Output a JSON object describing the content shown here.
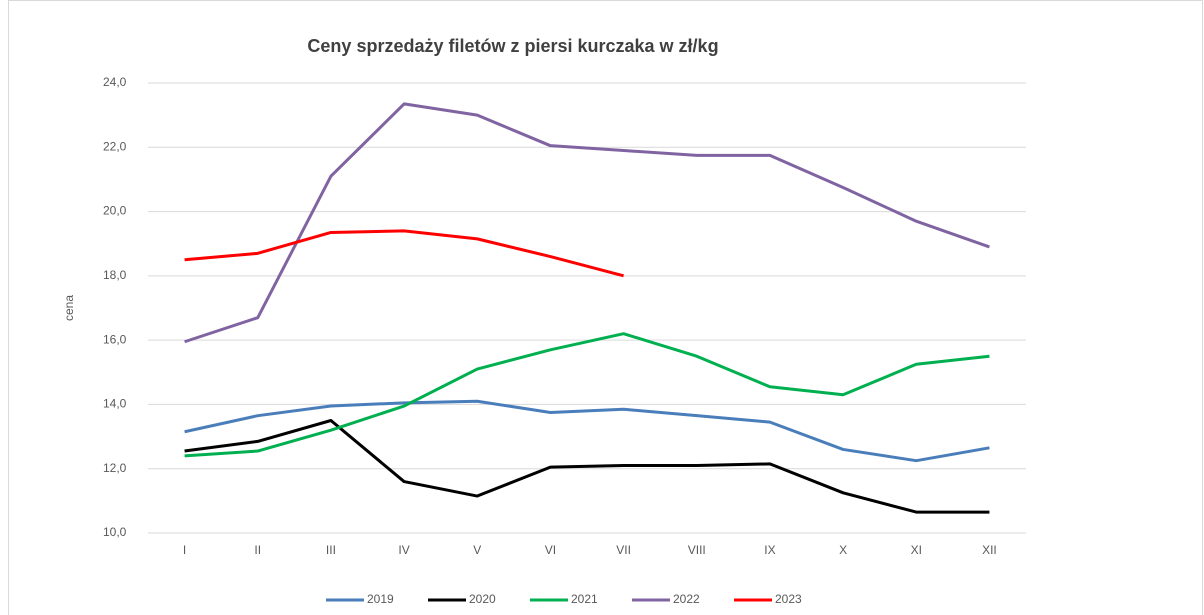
{
  "chart_data": {
    "type": "line",
    "title": "Ceny sprzedaży filetów z piersi kurczaka w zł/kg",
    "ylabel": "cena",
    "categories": [
      "I",
      "II",
      "III",
      "IV",
      "V",
      "VI",
      "VII",
      "VIII",
      "IX",
      "X",
      "XI",
      "XII"
    ],
    "series": [
      {
        "name": "2019",
        "color": "#4a7ebb",
        "values": [
          13.15,
          13.65,
          13.95,
          14.05,
          14.1,
          13.75,
          13.85,
          13.65,
          13.45,
          12.6,
          12.25,
          12.65
        ]
      },
      {
        "name": "2020",
        "color": "#000000",
        "values": [
          12.55,
          12.85,
          13.5,
          11.6,
          11.15,
          12.05,
          12.1,
          12.1,
          12.15,
          11.25,
          10.65,
          10.65
        ]
      },
      {
        "name": "2021",
        "color": "#00b050",
        "values": [
          12.4,
          12.55,
          13.2,
          13.95,
          15.1,
          15.7,
          16.2,
          15.5,
          14.55,
          14.3,
          15.25,
          15.5
        ]
      },
      {
        "name": "2022",
        "color": "#8064a2",
        "values": [
          15.95,
          16.7,
          21.1,
          23.35,
          23.0,
          22.05,
          21.9,
          21.75,
          21.75,
          20.75,
          19.7,
          18.9
        ]
      },
      {
        "name": "2023",
        "color": "#ff0000",
        "values": [
          18.5,
          18.7,
          19.35,
          19.4,
          19.15,
          18.6,
          18.0,
          null,
          null,
          null,
          null,
          null
        ]
      }
    ],
    "ylim": [
      10,
      24
    ],
    "yticks": [
      {
        "value": 10,
        "label": "10,0"
      },
      {
        "value": 12,
        "label": "12,0"
      },
      {
        "value": 14,
        "label": "14,0"
      },
      {
        "value": 16,
        "label": "16,0"
      },
      {
        "value": 18,
        "label": "18,0"
      },
      {
        "value": 20,
        "label": "20,0"
      },
      {
        "value": 22,
        "label": "22,0"
      },
      {
        "value": 24,
        "label": "24,0"
      }
    ],
    "grid": true,
    "legend": "bottom"
  }
}
